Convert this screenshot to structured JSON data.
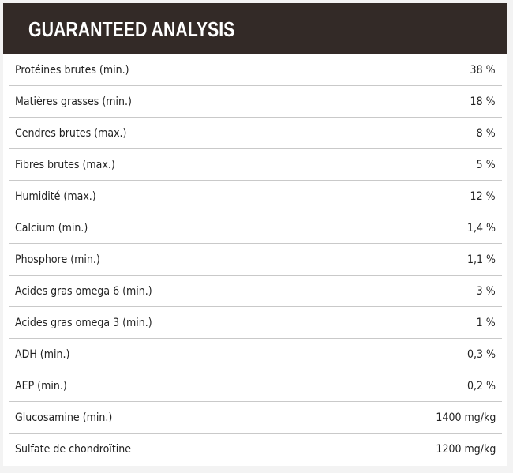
{
  "header": {
    "title": "GUARANTEED ANALYSIS"
  },
  "rows": [
    {
      "label": "Protéines brutes (min.)",
      "value": "38 %"
    },
    {
      "label": "Matières grasses (min.)",
      "value": "18 %"
    },
    {
      "label": "Cendres brutes (max.)",
      "value": "8 %"
    },
    {
      "label": "Fibres brutes (max.)",
      "value": "5 %"
    },
    {
      "label": "Humidité (max.)",
      "value": "12 %"
    },
    {
      "label": "Calcium (min.)",
      "value": "1,4 %"
    },
    {
      "label": "Phosphore (min.)",
      "value": "1,1 %"
    },
    {
      "label": "Acides gras omega 6 (min.)",
      "value": "3 %"
    },
    {
      "label": "Acides gras omega 3 (min.)",
      "value": "1 %"
    },
    {
      "label": "ADH (min.)",
      "value": "0,3 %"
    },
    {
      "label": "AEP (min.)",
      "value": "0,2 %"
    },
    {
      "label": "Glucosamine (min.)",
      "value": "1400 mg/kg"
    },
    {
      "label": "Sulfate de chondroïtine",
      "value": "1200 mg/kg"
    }
  ]
}
